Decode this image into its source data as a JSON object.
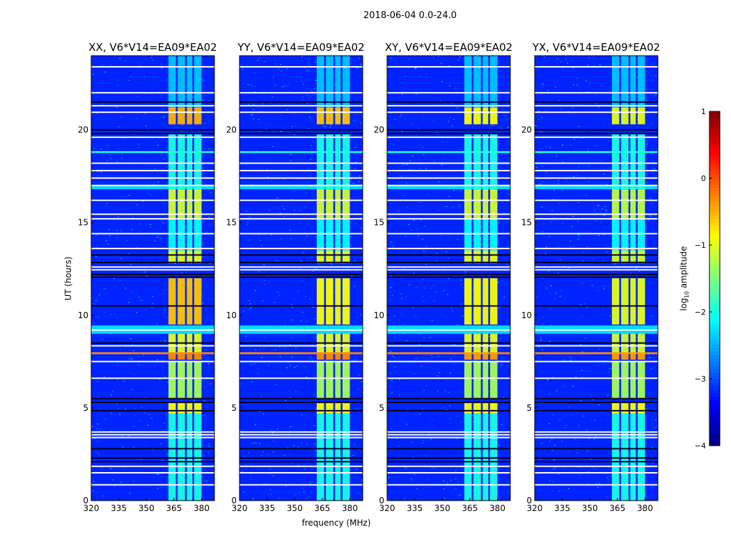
{
  "chart_data": {
    "type": "heatmap",
    "suptitle": "2018-06-04 0.0-24.0",
    "xlabel": "frequency (MHz)",
    "ylabel": "UT (hours)",
    "xlim": [
      320,
      387
    ],
    "ylim": [
      0,
      24
    ],
    "xticks": [
      320,
      335,
      350,
      365,
      380
    ],
    "yticks": [
      0,
      5,
      10,
      15,
      20
    ],
    "colorbar": {
      "label": "log10 amplitude",
      "label_main": "log",
      "label_sub": "10",
      "label_tail": " amplitude",
      "range": [
        -4,
        1
      ],
      "ticks": [
        1,
        0,
        -1,
        -2,
        -3,
        -4
      ],
      "colormap": "jet"
    },
    "background_level": -3.2,
    "panels": [
      {
        "title": "XX, V6*V14=EA09*EA02"
      },
      {
        "title": "YY, V6*V14=EA09*EA02"
      },
      {
        "title": "XY, V6*V14=EA09*EA02"
      },
      {
        "title": "YX, V6*V14=EA09*EA02"
      }
    ],
    "rfi_channels_mhz": [
      [
        362,
        366
      ],
      [
        367,
        371
      ],
      [
        372,
        375
      ],
      [
        376,
        380
      ]
    ],
    "rfi_segments": [
      {
        "t": [
          0,
          4.7
        ],
        "levels": [
          -2.0,
          -2.0,
          -2.0,
          -2.0
        ]
      },
      {
        "t": [
          4.7,
          5.3
        ],
        "levels": [
          -0.9,
          -0.9,
          -0.9,
          -0.9
        ]
      },
      {
        "t": [
          5.5,
          7.5
        ],
        "levels": [
          -1.3,
          -1.3,
          -1.3,
          -1.3
        ]
      },
      {
        "t": [
          7.6,
          8.0
        ],
        "levels": [
          -0.3,
          -0.3,
          -0.4,
          -0.4
        ]
      },
      {
        "t": [
          8.0,
          9.0
        ],
        "levels": [
          -1.0,
          -1.0,
          -1.0,
          -1.1
        ]
      },
      {
        "t": [
          9.5,
          12.0
        ],
        "levels": [
          -0.6,
          -0.9,
          -0.9,
          -1.0
        ]
      },
      {
        "t": [
          12.8,
          13.5
        ],
        "levels": [
          -1.0,
          -1.0,
          -1.0,
          -1.1
        ]
      },
      {
        "t": [
          13.5,
          15.2
        ],
        "levels": [
          -2.1,
          -2.1,
          -2.1,
          -2.1
        ]
      },
      {
        "t": [
          15.2,
          16.8
        ],
        "levels": [
          -1.1,
          -1.1,
          -1.1,
          -1.2
        ]
      },
      {
        "t": [
          16.8,
          19.8
        ],
        "levels": [
          -2.0,
          -2.0,
          -2.0,
          -2.0
        ]
      },
      {
        "t": [
          20.3,
          21.2
        ],
        "levels": [
          -0.5,
          -0.6,
          -0.9,
          -1.0
        ]
      },
      {
        "t": [
          21.2,
          24
        ],
        "levels": [
          -2.4,
          -2.4,
          -2.4,
          -2.4
        ]
      }
    ],
    "flagged_white_hours": [
      0.85,
      1.5,
      1.85,
      3.4,
      3.55,
      3.7,
      6.6,
      7.5,
      8.35,
      9.2,
      12.45,
      12.6,
      13.6,
      14.4,
      15.2,
      15.45,
      16.2,
      17.0,
      17.4,
      17.8,
      18.2,
      19.6,
      20.95,
      21.3,
      22.0,
      23.4
    ],
    "black_gap_hours": [
      2.1,
      2.3,
      2.8,
      4.85,
      5.3,
      5.5,
      8.5,
      10.5,
      12.05,
      12.2,
      12.85,
      13.25,
      19.8,
      20.0,
      21.5
    ],
    "broadband_bands": [
      {
        "t": [
          9.0,
          9.45
        ],
        "level": -2.3
      },
      {
        "t": [
          16.8,
          17.0
        ],
        "level": -2.3
      },
      {
        "t": [
          18.75,
          18.85
        ],
        "level": -2.0
      },
      {
        "t": [
          7.9,
          8.0
        ],
        "level": -0.3
      }
    ]
  }
}
